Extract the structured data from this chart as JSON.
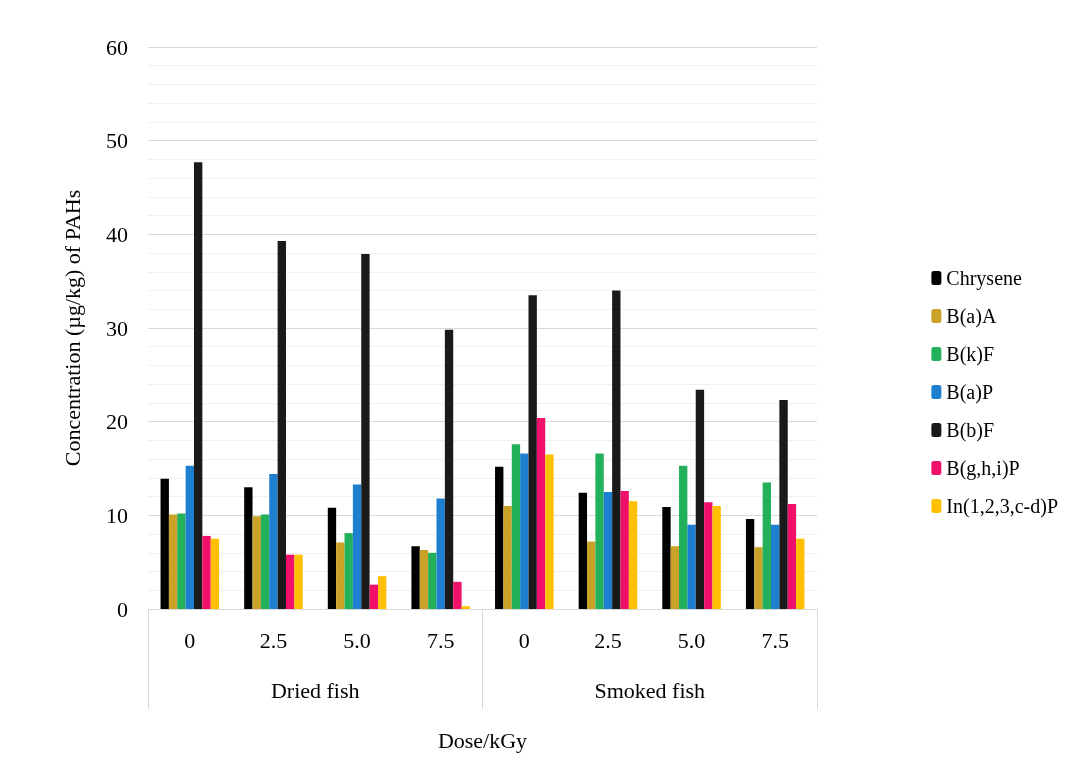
{
  "chart_data": {
    "type": "bar",
    "categories": [
      "0",
      "2.5",
      "5.0",
      "7.5",
      "0",
      "2.5",
      "5.0",
      "7.5"
    ],
    "annotations": [
      "Dried fish",
      "Smoked fish"
    ],
    "xlabel": "Dose/kGy",
    "ylabel": "Concentration (µg/kg) of PAHs",
    "ylim": [
      0,
      60
    ],
    "yticks": [
      0,
      10,
      20,
      30,
      40,
      50,
      60
    ],
    "grid": "y",
    "legend": "right",
    "series": [
      {
        "name": "Chrysene",
        "color": "#000000",
        "values": [
          13.9,
          13.0,
          10.8,
          6.7,
          15.2,
          12.4,
          10.9,
          9.6
        ]
      },
      {
        "name": "B(a)A",
        "color": "#c9a227",
        "values": [
          10.1,
          9.9,
          7.1,
          6.3,
          11.0,
          7.2,
          6.7,
          6.6
        ]
      },
      {
        "name": "B(k)F",
        "color": "#22b05a",
        "values": [
          10.2,
          10.1,
          8.1,
          6.0,
          17.6,
          16.6,
          15.3,
          13.5
        ]
      },
      {
        "name": "B(a)P",
        "color": "#1e7fd0",
        "values": [
          15.3,
          14.4,
          13.3,
          11.8,
          16.6,
          12.5,
          9.0,
          9.0
        ]
      },
      {
        "name": "B(b)F",
        "color": "#1a1a1a",
        "values": [
          47.7,
          39.3,
          37.9,
          29.8,
          33.5,
          34.0,
          23.4,
          22.3
        ]
      },
      {
        "name": "B(g,h,i)P",
        "color": "#f0106a",
        "values": [
          7.8,
          5.8,
          2.6,
          2.9,
          20.4,
          12.6,
          11.4,
          11.2
        ]
      },
      {
        "name": "In(1,2,3,c-d)P",
        "color": "#ffc000",
        "values": [
          7.5,
          5.8,
          3.5,
          0.3,
          16.5,
          11.5,
          11.0,
          7.5
        ]
      }
    ]
  }
}
